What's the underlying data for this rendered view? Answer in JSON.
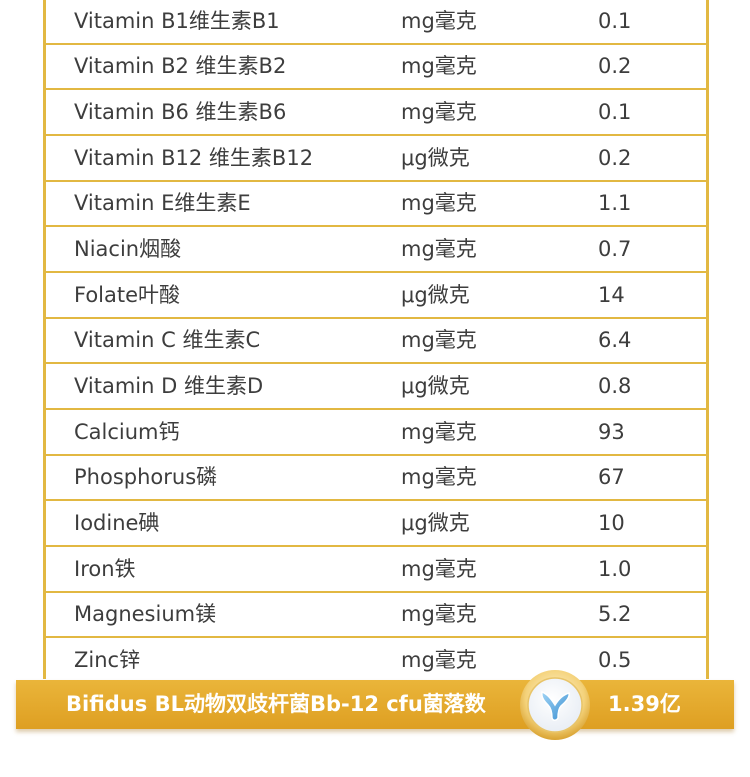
{
  "rows": [
    {
      "name": "Vitamin B1维生素B1",
      "unit": "mg毫克",
      "value": "0.1"
    },
    {
      "name": "Vitamin B2 维生素B2",
      "unit": "mg毫克",
      "value": "0.2"
    },
    {
      "name": "Vitamin B6 维生素B6",
      "unit": "mg毫克",
      "value": "0.1"
    },
    {
      "name": "Vitamin B12 维生素B12",
      "unit": "μg微克",
      "value": "0.2"
    },
    {
      "name": "Vitamin E维生素E",
      "unit": "mg毫克",
      "value": "1.1"
    },
    {
      "name": "Niacin烟酸",
      "unit": "mg毫克",
      "value": "0.7"
    },
    {
      "name": "Folate叶酸",
      "unit": "μg微克",
      "value": "14"
    },
    {
      "name": "Vitamin C 维生素C",
      "unit": "mg毫克",
      "value": "6.4"
    },
    {
      "name": "Vitamin D  维生素D",
      "unit": "μg微克",
      "value": "0.8"
    },
    {
      "name": "Calcium钙",
      "unit": "mg毫克",
      "value": "93"
    },
    {
      "name": "Phosphorus磷",
      "unit": "mg毫克",
      "value": "67"
    },
    {
      "name": "Iodine碘",
      "unit": "μg微克",
      "value": "10"
    },
    {
      "name": "Iron铁",
      "unit": "mg毫克",
      "value": "1.0"
    },
    {
      "name": "Magnesium镁",
      "unit": "mg毫克",
      "value": "5.2"
    },
    {
      "name": "Zinc锌",
      "unit": "mg毫克",
      "value": "0.5"
    }
  ],
  "highlight": {
    "label": "Bifidus BL动物双歧杆菌Bb-12   cfu菌落数",
    "value": "1.39亿",
    "icon": "bifidus-badge-icon"
  },
  "colors": {
    "border": "#e2b842",
    "banner": "#e3aa2e",
    "text": "#3d3d3d"
  }
}
